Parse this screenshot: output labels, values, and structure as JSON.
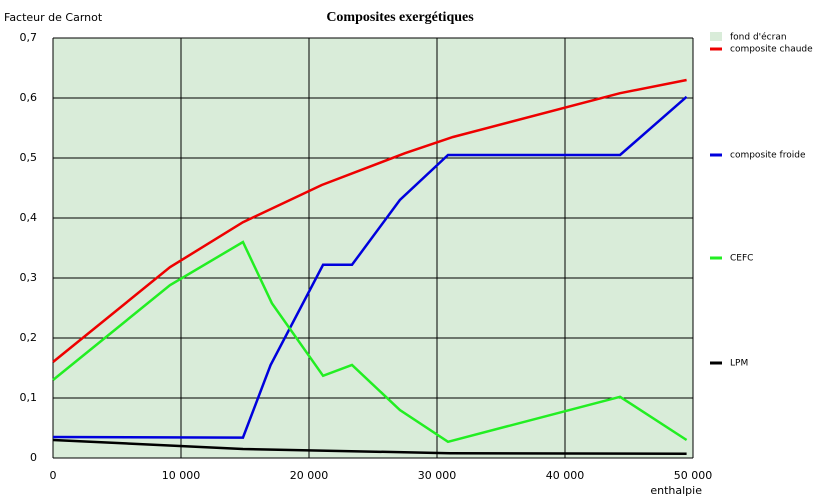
{
  "chart_data": {
    "type": "line",
    "title": "Composites exergétiques",
    "y_label": "Facteur de Carnot",
    "x_label": "enthalpie",
    "background": {
      "name": "fond d'écran",
      "color": "#d9ecd9"
    },
    "xlim": [
      0,
      50000
    ],
    "xticks": [
      0,
      {
        "value": 10000,
        "label": "10 000"
      },
      {
        "value": 20000,
        "label": "20 000"
      },
      {
        "value": 30000,
        "label": "30 000"
      },
      {
        "value": 40000,
        "label": "40 000"
      },
      {
        "value": 50000,
        "label": "50 000"
      }
    ],
    "ylim": [
      0,
      0.7
    ],
    "yticks": [
      0,
      {
        "value": 0.1,
        "label": "0,1"
      },
      {
        "value": 0.2,
        "label": "0,2"
      },
      {
        "value": 0.3,
        "label": "0,3"
      },
      {
        "value": 0.4,
        "label": "0,4"
      },
      {
        "value": 0.5,
        "label": "0,5"
      },
      {
        "value": 0.6,
        "label": "0,6"
      },
      {
        "value": 0.7,
        "label": "0,7"
      }
    ],
    "grid": true,
    "series": [
      {
        "name": "composite chaude",
        "color": "#ee0000",
        "x": [
          0,
          9140,
          14840,
          21000,
          27500,
          31250,
          44300,
          49500
        ],
        "values": [
          0.16,
          0.318,
          0.393,
          0.455,
          0.508,
          0.535,
          0.608,
          0.63
        ]
      },
      {
        "name": "composite froide",
        "color": "#0000dd",
        "x": [
          0,
          14840,
          17000,
          21100,
          23360,
          27100,
          30860,
          44300,
          49500
        ],
        "values": [
          0.035,
          0.034,
          0.155,
          0.322,
          0.322,
          0.43,
          0.505,
          0.505,
          0.602
        ]
      },
      {
        "name": "CEFC",
        "color": "#22ee22",
        "x": [
          0,
          9140,
          14840,
          17100,
          21100,
          23360,
          27100,
          30860,
          44300,
          49500
        ],
        "values": [
          0.13,
          0.288,
          0.36,
          0.258,
          0.137,
          0.155,
          0.08,
          0.027,
          0.102,
          0.03
        ]
      },
      {
        "name": "LPM",
        "color": "#000000",
        "x": [
          0,
          14840,
          31000,
          49500
        ],
        "values": [
          0.03,
          0.015,
          0.008,
          0.007
        ]
      }
    ]
  }
}
